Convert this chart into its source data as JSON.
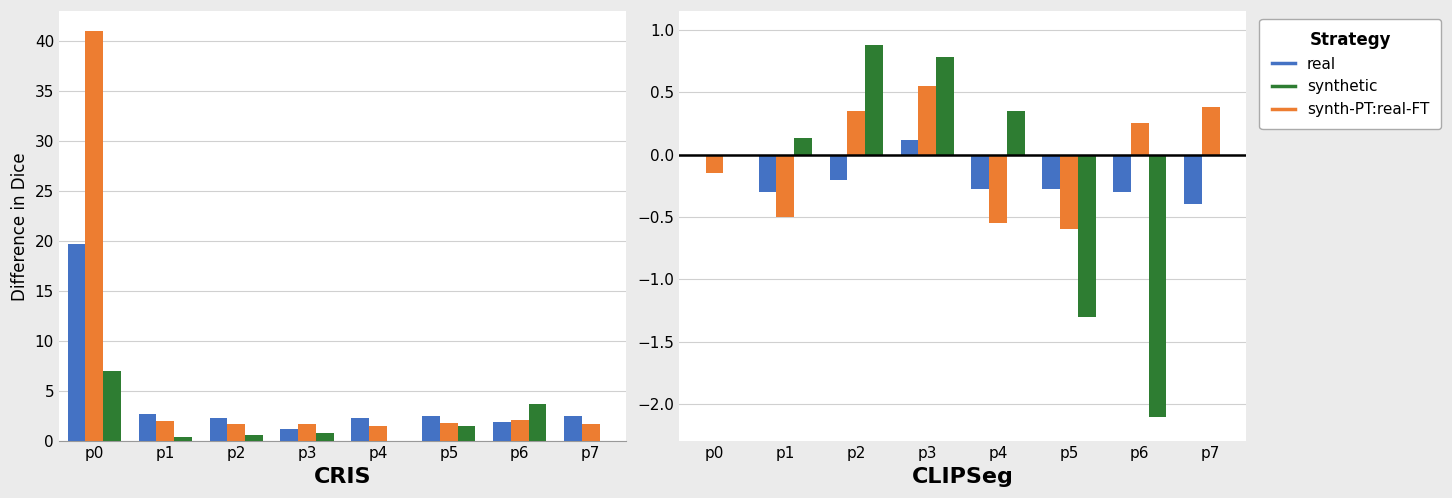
{
  "categories": [
    "p0",
    "p1",
    "p2",
    "p3",
    "p4",
    "p5",
    "p6",
    "p7"
  ],
  "cris": {
    "real": [
      19.7,
      2.7,
      2.3,
      1.2,
      2.3,
      2.5,
      1.9,
      2.5
    ],
    "synth_pt": [
      41.0,
      2.0,
      1.7,
      1.7,
      1.5,
      1.8,
      2.1,
      1.7
    ],
    "synthetic": [
      7.0,
      0.4,
      0.6,
      0.8,
      0.0,
      1.5,
      3.7,
      0.0
    ]
  },
  "clipseg": {
    "real": [
      0.0,
      -0.3,
      -0.2,
      0.12,
      -0.28,
      -0.28,
      -0.3,
      -0.4
    ],
    "synth_pt": [
      -0.15,
      -0.5,
      0.35,
      0.55,
      -0.55,
      -0.6,
      0.25,
      0.38
    ],
    "synthetic": [
      0.0,
      0.13,
      0.88,
      0.78,
      0.35,
      -1.3,
      -2.1,
      0.0
    ]
  },
  "colors": {
    "real": "#4472C4",
    "synthetic": "#2E7D32",
    "synth_pt": "#ED7D31"
  },
  "ylabel": "Difference in Dice",
  "cris_xlabel": "CRIS",
  "clipseg_xlabel": "CLIPSeg",
  "legend_title": "Strategy",
  "legend_labels": [
    "real",
    "synthetic",
    "synth-PT:real-FT"
  ],
  "plot_bg_color": "#FFFFFF",
  "fig_bg_color": "#EBEBEB",
  "grid_color": "#D0D0D0",
  "hline_color": "black",
  "bar_width": 0.25,
  "xlabel_fontsize": 16,
  "ylabel_fontsize": 12,
  "tick_fontsize": 11,
  "legend_fontsize": 11,
  "legend_title_fontsize": 12
}
